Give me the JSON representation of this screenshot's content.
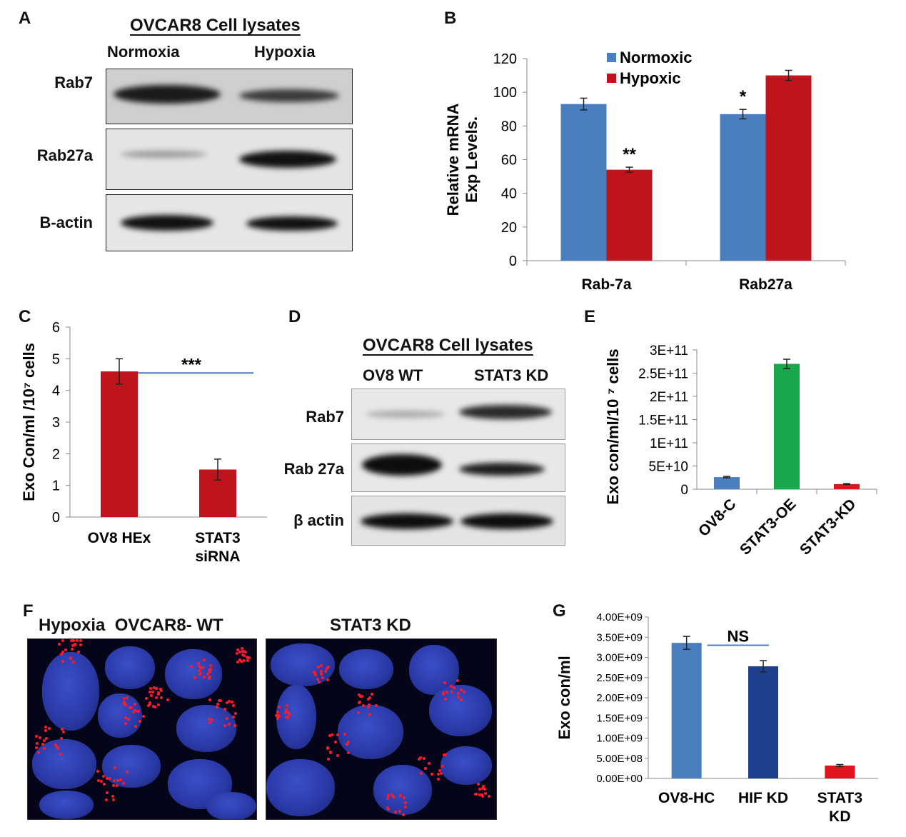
{
  "panels": {
    "A": {
      "label": "A",
      "title": "OVCAR8 Cell lysates",
      "columns": [
        "Normoxia",
        "Hypoxia"
      ],
      "rows": [
        "Rab7",
        "Rab27a",
        "B-actin"
      ]
    },
    "B": {
      "label": "B",
      "chart_data": {
        "type": "bar",
        "categories": [
          "Rab-7a",
          "Rab27a"
        ],
        "series": [
          {
            "name": "Normoxic",
            "values": [
              93,
              87
            ],
            "errors": [
              3.5,
              2.8
            ],
            "color": "#4a7ebf"
          },
          {
            "name": "Hypoxic",
            "values": [
              54,
              110
            ],
            "errors": [
              1.5,
              3.0
            ],
            "color": "#c0141c"
          }
        ],
        "annotations": [
          {
            "text": "**",
            "category": "Rab-7a",
            "series": "Hypoxic"
          },
          {
            "text": "*",
            "category": "Rab27a",
            "series": "Normoxic"
          }
        ],
        "ylabel": [
          "Relative mRNA",
          "Exp Levels."
        ],
        "ylim": [
          0,
          120
        ],
        "yticks": [
          "0",
          "20",
          "40",
          "60",
          "80",
          "100",
          "120"
        ],
        "legend": "top-left"
      }
    },
    "C": {
      "label": "C",
      "chart_data": {
        "type": "bar",
        "categories": [
          [
            "OV8 HEx"
          ],
          [
            "STAT3",
            "siRNA"
          ]
        ],
        "values": [
          4.6,
          1.5
        ],
        "errors": [
          0.4,
          0.33
        ],
        "color": "#c0141c",
        "annotation": "***",
        "ylabel": "Exo Con/ml /10⁷ cells",
        "ylim": [
          0,
          6
        ],
        "yticks": [
          "0",
          "1",
          "2",
          "3",
          "4",
          "5",
          "6"
        ]
      }
    },
    "D": {
      "label": "D",
      "title": "OVCAR8 Cell lysates",
      "columns": [
        "OV8 WT",
        "STAT3 KD"
      ],
      "rows": [
        "Rab7",
        "Rab 27a",
        "β actin"
      ]
    },
    "E": {
      "label": "E",
      "chart_data": {
        "type": "bar",
        "categories": [
          "OV8-C",
          "STAT3-OE",
          "STAT3-KD"
        ],
        "values": [
          26000000000.0,
          270000000000.0,
          11000000000.0
        ],
        "errors": [
          1500000000.0,
          10000000000.0,
          1000000000.0
        ],
        "colors": [
          "#4a7ebf",
          "#1aa64a",
          "#e0141c"
        ],
        "ylabel": "Exo con/ml/10 ⁷ cells",
        "ylim": [
          0,
          300000000000.0
        ],
        "yticks": [
          "0",
          "5E+10",
          "1E+11",
          "1.5E+11",
          "2E+11",
          "2.5E+11",
          "3E+11"
        ]
      }
    },
    "F": {
      "label": "F",
      "image_labels": [
        "Hypoxia  OVCAR8- WT",
        "STAT3 KD"
      ]
    },
    "G": {
      "label": "G",
      "chart_data": {
        "type": "bar",
        "categories": [
          [
            "OV8-HC"
          ],
          [
            "HIF KD"
          ],
          [
            "STAT3",
            "KD"
          ]
        ],
        "values": [
          3360000000.0,
          2780000000.0,
          320000000.0
        ],
        "errors": [
          160000000.0,
          140000000.0,
          25000000.0
        ],
        "colors": [
          "#4a7ebf",
          "#1f3f8f",
          "#e0141c"
        ],
        "annotation": "NS",
        "ylabel": "Exo con/ml",
        "ylim": [
          0,
          4000000000.0
        ],
        "yticks": [
          "0.00E+00",
          "5.00E+08",
          "1.00E+09",
          "1.50E+09",
          "2.00E+09",
          "2.50E+09",
          "3.00E+09",
          "3.50E+09",
          "4.00E+09"
        ]
      }
    }
  }
}
